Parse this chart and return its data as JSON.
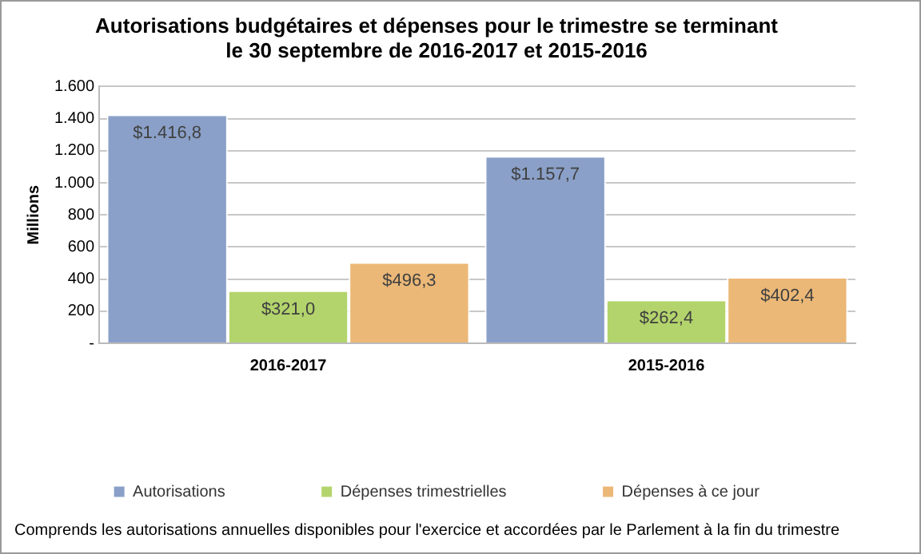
{
  "chart_data": {
    "type": "bar",
    "title": "Autorisations budgétaires et dépenses pour le trimestre se terminant\nle 30 septembre de 2016-2017 et 2015-2016",
    "ylabel": "Millions",
    "categories": [
      "2016-2017",
      "2015-2016"
    ],
    "series": [
      {
        "name": "Autorisations",
        "color": "#8aa0c8",
        "values": [
          1416.8,
          1157.7
        ],
        "value_labels": [
          "$1.416,8",
          "$1.157,7"
        ]
      },
      {
        "name": "Dépenses trimestrielles",
        "color": "#b3d46c",
        "values": [
          321.0,
          262.4
        ],
        "value_labels": [
          "$321,0",
          "$262,4"
        ]
      },
      {
        "name": "Dépenses à ce jour",
        "color": "#ebb877",
        "values": [
          496.3,
          402.4
        ],
        "value_labels": [
          "$496,3",
          "$402,4"
        ]
      }
    ],
    "ylim": [
      0,
      1600
    ],
    "yticks": [
      {
        "value": 0,
        "label": "-"
      },
      200,
      400,
      600,
      800,
      {
        "value": 1000,
        "label": "1.000"
      },
      {
        "value": 1200,
        "label": "1.200"
      },
      {
        "value": 1400,
        "label": "1.400"
      },
      {
        "value": 1600,
        "label": "1.600"
      }
    ],
    "grid": "y",
    "legend": "bottom",
    "annotations": [
      "Comprends les autorisations annuelles disponibles pour l'exercice  et accordées par le Parlement à la fin du trimestre"
    ]
  }
}
